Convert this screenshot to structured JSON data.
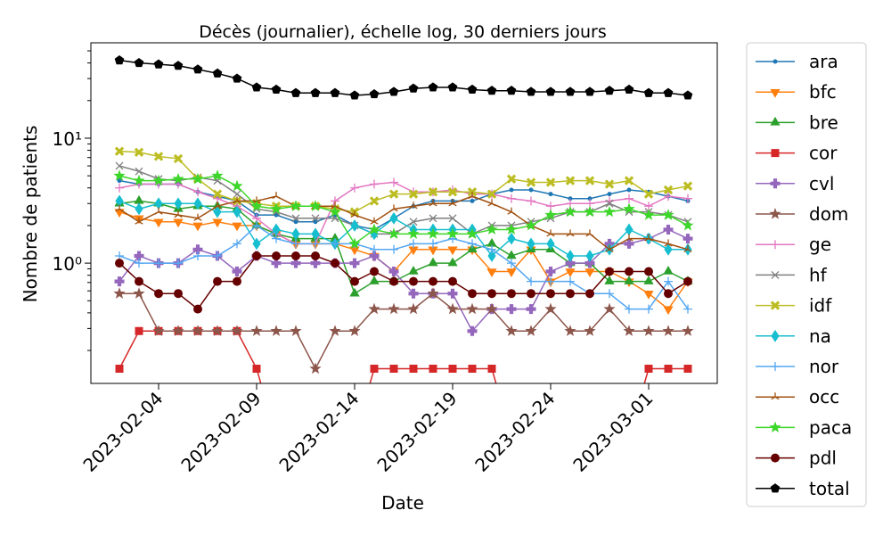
{
  "chart_data": {
    "type": "line",
    "title": "Décès (journalier), échelle log, 30 derniers jours",
    "xlabel": "Date",
    "ylabel": "Nombre de patients",
    "x": [
      "2023-02-02",
      "2023-02-03",
      "2023-02-04",
      "2023-02-05",
      "2023-02-06",
      "2023-02-07",
      "2023-02-08",
      "2023-02-09",
      "2023-02-10",
      "2023-02-11",
      "2023-02-12",
      "2023-02-13",
      "2023-02-14",
      "2023-02-15",
      "2023-02-16",
      "2023-02-17",
      "2023-02-18",
      "2023-02-19",
      "2023-02-20",
      "2023-02-21",
      "2023-02-22",
      "2023-02-23",
      "2023-02-24",
      "2023-02-25",
      "2023-02-26",
      "2023-02-27",
      "2023-02-28",
      "2023-03-01",
      "2023-03-02",
      "2023-03-03"
    ],
    "xlim": [
      "2023-01-31T13:05",
      "2023-03-04T12:00"
    ],
    "xticks": [
      "2023-02-04",
      "2023-02-09",
      "2023-02-14",
      "2023-02-19",
      "2023-02-24",
      "2023-03-01"
    ],
    "ylim": [
      0.109,
      58
    ],
    "yscale": "log",
    "yticks": [
      {
        "value": 1,
        "label": "10⁰"
      },
      {
        "value": 10,
        "label": "10¹"
      }
    ],
    "legend": "outside right",
    "series": [
      {
        "name": "ara",
        "color": "#1f77b4",
        "marker": "point",
        "values": [
          4.571,
          4.286,
          4.286,
          4.286,
          3.714,
          3.429,
          3.143,
          2.429,
          2.429,
          2.143,
          2.143,
          2.429,
          2,
          1.857,
          2.286,
          2.857,
          3.143,
          3.143,
          3.143,
          3.571,
          3.857,
          3.857,
          3.571,
          3.286,
          3.286,
          3.571,
          3.857,
          3.714,
          3.429,
          3.143
        ]
      },
      {
        "name": "bfc",
        "color": "#ff7f0e",
        "marker": "tri-down",
        "values": [
          2.571,
          2.286,
          2.143,
          2.143,
          2,
          2.143,
          2,
          2,
          1.714,
          1.429,
          1.429,
          1.429,
          1.286,
          1.143,
          0.857,
          1.286,
          1.286,
          1.286,
          1.286,
          0.857,
          0.857,
          1.286,
          0.714,
          0.857,
          0.857,
          0.857,
          0.714,
          0.571,
          0.429,
          0.714
        ]
      },
      {
        "name": "bre",
        "color": "#2ca02c",
        "marker": "tri-up",
        "values": [
          3,
          3.143,
          3,
          2.714,
          2.857,
          2.857,
          2.714,
          2,
          1.714,
          1.571,
          1.571,
          1.571,
          0.571,
          0.714,
          0.714,
          0.857,
          1,
          1,
          1.286,
          1.429,
          1.143,
          1.286,
          1.286,
          1,
          1,
          0.714,
          0.714,
          0.714,
          0.857,
          0.714
        ]
      },
      {
        "name": "cor",
        "color": "#d62728",
        "marker": "square",
        "values": [
          0.143,
          0.286,
          0.286,
          0.286,
          0.286,
          0.286,
          0.286,
          0.143,
          0,
          0,
          0,
          0,
          0,
          0.143,
          0.143,
          0.143,
          0.143,
          0.143,
          0.143,
          0.143,
          0,
          0,
          0,
          0,
          0,
          0,
          0,
          0.143,
          0.143,
          0.143
        ]
      },
      {
        "name": "cvl",
        "color": "#9467bd",
        "marker": "plus-bold",
        "values": [
          0.714,
          1.143,
          1,
          1,
          1.286,
          1.143,
          0.857,
          1.143,
          1,
          1,
          1,
          1,
          1,
          1.143,
          0.857,
          0.571,
          0.571,
          0.571,
          0.286,
          0.429,
          0.429,
          0.429,
          0.857,
          1,
          1,
          1.429,
          1.429,
          1.571,
          1.857,
          1.571
        ]
      },
      {
        "name": "dom",
        "color": "#8c564b",
        "marker": "star",
        "values": [
          0.571,
          0.571,
          0.286,
          0.286,
          0.286,
          0.286,
          0.286,
          0.286,
          0.286,
          0.286,
          0.143,
          0.286,
          0.286,
          0.429,
          0.429,
          0.429,
          0.571,
          0.429,
          0.429,
          0.429,
          0.286,
          0.286,
          0.429,
          0.286,
          0.286,
          0.429,
          0.286,
          0.286,
          0.286,
          0.286
        ]
      },
      {
        "name": "ge",
        "color": "#e377c2",
        "marker": "plus",
        "values": [
          4,
          4.286,
          4.286,
          4.286,
          3.714,
          3.286,
          2.857,
          2.286,
          1.714,
          1.429,
          1.429,
          3.143,
          4,
          4.286,
          4.429,
          3.714,
          3.714,
          3.857,
          3.571,
          3.571,
          3.286,
          3.143,
          2.857,
          3,
          3,
          3.143,
          3.286,
          2.857,
          3.429,
          3.286
        ]
      },
      {
        "name": "hf",
        "color": "#7f7f7f",
        "marker": "x",
        "values": [
          6,
          5.429,
          4.714,
          4.571,
          4.857,
          4.571,
          3.571,
          2.714,
          2.571,
          2.286,
          2.286,
          2.286,
          2,
          1.714,
          1.714,
          2.143,
          2.286,
          2.286,
          1.714,
          2,
          2,
          2.143,
          2.286,
          2.571,
          2.571,
          3,
          2.571,
          2.571,
          2.429,
          2.143
        ]
      },
      {
        "name": "idf",
        "color": "#bcbd22",
        "marker": "x-bold",
        "values": [
          7.857,
          7.714,
          7.143,
          6.857,
          4.714,
          3.571,
          3.143,
          3,
          2.857,
          2.857,
          2.857,
          2.714,
          2.571,
          3.143,
          3.571,
          3.571,
          3.714,
          3.714,
          3.714,
          3.571,
          4.714,
          4.429,
          4.429,
          4.571,
          4.571,
          4.286,
          4.571,
          3.571,
          3.857,
          4.143
        ]
      },
      {
        "name": "na",
        "color": "#17becf",
        "marker": "diamond",
        "values": [
          3.143,
          2.714,
          3,
          3,
          3,
          2.571,
          2.571,
          1.429,
          1.857,
          1.714,
          1.714,
          1.429,
          2,
          1.714,
          2.286,
          1.857,
          1.857,
          1.857,
          1.857,
          1.143,
          1.571,
          1.429,
          1.429,
          1.143,
          1.143,
          1.286,
          1.857,
          1.571,
          1.286,
          1.286
        ]
      },
      {
        "name": "nor",
        "color": "#55a7f2",
        "marker": "plus",
        "values": [
          1.143,
          1,
          1,
          1,
          1.143,
          1.143,
          1.429,
          2,
          1.571,
          1.429,
          1.429,
          1.429,
          1.429,
          1.286,
          1.286,
          1.429,
          1.429,
          1.571,
          1.429,
          1.286,
          1,
          0.714,
          0.714,
          0.714,
          0.571,
          0.571,
          0.429,
          0.429,
          0.714,
          0.429
        ]
      },
      {
        "name": "occ",
        "color": "#a0500f",
        "marker": "tri-up-thin",
        "values": [
          2.714,
          2.143,
          2.571,
          2.429,
          2.286,
          2.857,
          3.143,
          3.143,
          3.429,
          2.857,
          2.857,
          2.857,
          2.429,
          2.143,
          2.714,
          2.857,
          3,
          3,
          3.429,
          3,
          2.571,
          2,
          1.714,
          1.714,
          1.714,
          1.286,
          1.571,
          1.571,
          1.429,
          1.286
        ]
      },
      {
        "name": "paca",
        "color": "#3dd62a",
        "marker": "star",
        "values": [
          5,
          4.571,
          4.571,
          4.714,
          4.714,
          5,
          4.143,
          2.857,
          2.714,
          2.857,
          2.857,
          2.571,
          1.429,
          1.857,
          1.714,
          1.714,
          1.714,
          1.714,
          1.714,
          1.857,
          1.857,
          2,
          2.429,
          2.571,
          2.571,
          2.571,
          2.714,
          2.429,
          2.429,
          2
        ]
      },
      {
        "name": "pdl",
        "color": "#660000",
        "marker": "circle",
        "values": [
          1,
          0.714,
          0.571,
          0.571,
          0.429,
          0.714,
          0.714,
          1.143,
          1.143,
          1.143,
          1.143,
          1,
          0.714,
          0.857,
          0.714,
          0.714,
          0.714,
          0.714,
          0.571,
          0.571,
          0.571,
          0.571,
          0.571,
          0.571,
          0.571,
          0.857,
          0.857,
          0.857,
          0.571,
          0.714
        ]
      },
      {
        "name": "total",
        "color": "#000000",
        "marker": "pentagon",
        "values": [
          42,
          40,
          39,
          38,
          35.5,
          33,
          30,
          25.5,
          24.5,
          23,
          23,
          23,
          22,
          22.5,
          23.5,
          25,
          25.5,
          25.5,
          24.5,
          24,
          24,
          23.5,
          23.5,
          23.5,
          23.5,
          24,
          24.5,
          23,
          23,
          22
        ]
      }
    ]
  }
}
